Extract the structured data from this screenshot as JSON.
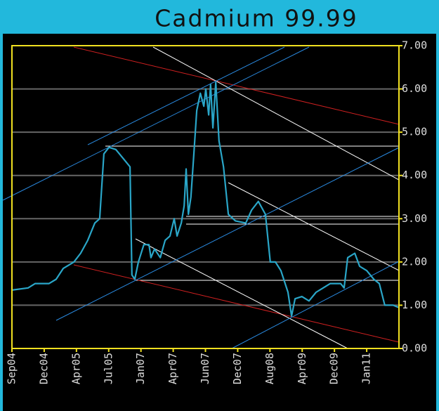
{
  "chart_data": {
    "type": "line",
    "title": "Cadmium 99.99",
    "x": [
      0,
      5.0,
      7.2,
      11.5,
      13.7,
      15.9,
      19.2,
      21.3,
      23.5,
      25.7,
      27.2,
      28.5,
      30.1,
      32.2,
      34.4,
      36.6,
      37.2,
      38.1,
      39.2,
      40.9,
      42.5,
      43.1,
      44.2,
      46.0,
      47.5,
      49.0,
      50.3,
      51.2,
      52.5,
      53.4,
      54.0,
      54.7,
      55.5,
      56.4,
      57.3,
      58.4,
      59.5,
      60.1,
      61.0,
      61.6,
      62.3,
      63.2,
      64.2,
      65.6,
      67.1,
      69.3,
      72.5,
      74.3,
      76.4,
      78.6,
      80.1,
      81.7,
      83.4,
      85.6,
      86.7,
      87.8,
      89.9,
      92.1,
      94.3,
      96.5,
      98.7,
      101.9,
      103.0,
      104.1,
      106.3,
      107.8,
      110.0,
      112.2,
      113.9,
      115.6,
      118.2,
      119.8
    ],
    "values": [
      1.35,
      1.4,
      1.5,
      1.5,
      1.6,
      1.85,
      2.0,
      2.2,
      2.5,
      2.9,
      3.0,
      4.5,
      4.65,
      4.6,
      4.4,
      4.2,
      1.7,
      1.6,
      2.0,
      2.4,
      2.4,
      2.1,
      2.3,
      2.1,
      2.5,
      2.6,
      3.0,
      2.6,
      2.9,
      3.3,
      4.15,
      3.1,
      3.5,
      4.5,
      5.5,
      5.9,
      5.6,
      6.0,
      5.4,
      6.1,
      5.1,
      6.15,
      4.8,
      4.2,
      3.1,
      2.95,
      2.9,
      3.2,
      3.4,
      3.1,
      2.0,
      2.0,
      1.8,
      1.3,
      0.75,
      1.15,
      1.2,
      1.1,
      1.3,
      1.4,
      1.5,
      1.5,
      1.4,
      2.1,
      2.2,
      1.9,
      1.8,
      1.6,
      1.5,
      1.0,
      1.0,
      0.95
    ],
    "color": "#2aa6c8",
    "xlim": [
      0,
      120
    ],
    "xticks": [
      {
        "value": 0,
        "label": "Sep04"
      },
      {
        "value": 10,
        "label": "Dec04"
      },
      {
        "value": 20,
        "label": "Apr05"
      },
      {
        "value": 30,
        "label": "Jul05"
      },
      {
        "value": 40,
        "label": "Jan07"
      },
      {
        "value": 50,
        "label": "Apr07"
      },
      {
        "value": 60,
        "label": "Jun07"
      },
      {
        "value": 70,
        "label": "Dec07"
      },
      {
        "value": 80,
        "label": "Aug08"
      },
      {
        "value": 90,
        "label": "Apr09"
      },
      {
        "value": 100,
        "label": "Dec09"
      },
      {
        "value": 110,
        "label": "Jan11"
      }
    ],
    "ylim": [
      0,
      7
    ],
    "yticks": [
      {
        "value": 0,
        "label": "0.00"
      },
      {
        "value": 1,
        "label": "1.00"
      },
      {
        "value": 2,
        "label": "2.00"
      },
      {
        "value": 3,
        "label": "3.00"
      },
      {
        "value": 4,
        "label": "4.00"
      },
      {
        "value": 5,
        "label": "5.00"
      },
      {
        "value": 6,
        "label": "6.00"
      },
      {
        "value": 7,
        "label": "7.00"
      }
    ],
    "grid": true
  }
}
